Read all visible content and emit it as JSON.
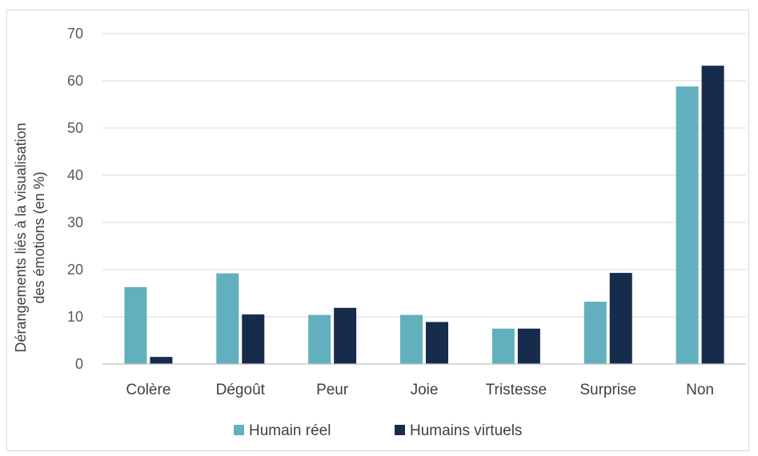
{
  "chart_data": {
    "type": "bar",
    "title": "",
    "xlabel": "",
    "ylabel_lines": [
      "Dérangements liés à la visualisation",
      "des émotions (en %)"
    ],
    "categories": [
      "Colère",
      "Dégoût",
      "Peur",
      "Joie",
      "Tristesse",
      "Surprise",
      "Non"
    ],
    "ylim": [
      0,
      70
    ],
    "yticks": [
      0,
      10,
      20,
      30,
      40,
      50,
      60,
      70
    ],
    "grid": true,
    "legend_position": "bottom",
    "series": [
      {
        "name": "Humain réel",
        "color": "#62b0bd",
        "values": [
          16.3,
          19.2,
          10.4,
          10.4,
          7.5,
          13.2,
          58.8
        ]
      },
      {
        "name": "Humains virtuels",
        "color": "#172b4d",
        "values": [
          1.5,
          10.5,
          11.9,
          8.9,
          7.5,
          19.3,
          63.2
        ]
      }
    ]
  },
  "colors": {
    "gridline": "#d9d9d9",
    "axis": "#bfbfbf"
  }
}
